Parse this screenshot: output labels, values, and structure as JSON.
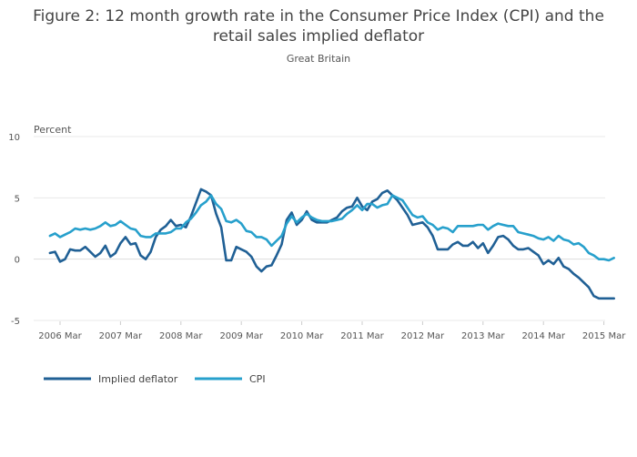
{
  "chart_data": {
    "type": "line",
    "title_line1": "Figure 2: 12 month growth rate in the Consumer Price Index (CPI) and the",
    "title_line2": "retail sales implied deflator",
    "subtitle": "Great Britain",
    "ylabel": "Percent",
    "xlabel": "",
    "ylim": [
      -5,
      10
    ],
    "yticks": [
      -5,
      0,
      5,
      10
    ],
    "xticks": [
      "2006 Mar",
      "2007 Mar",
      "2008 Mar",
      "2009 Mar",
      "2010 Mar",
      "2011 Mar",
      "2012 Mar",
      "2013 Mar",
      "2014 Mar",
      "2015 Mar"
    ],
    "grid": true,
    "legend_position": "bottom-left",
    "x": [
      "2006 Jan",
      "2006 Feb",
      "2006 Mar",
      "2006 Apr",
      "2006 May",
      "2006 Jun",
      "2006 Jul",
      "2006 Aug",
      "2006 Sep",
      "2006 Oct",
      "2006 Nov",
      "2006 Dec",
      "2007 Jan",
      "2007 Feb",
      "2007 Mar",
      "2007 Apr",
      "2007 May",
      "2007 Jun",
      "2007 Jul",
      "2007 Aug",
      "2007 Sep",
      "2007 Oct",
      "2007 Nov",
      "2007 Dec",
      "2008 Jan",
      "2008 Feb",
      "2008 Mar",
      "2008 Apr",
      "2008 May",
      "2008 Jun",
      "2008 Jul",
      "2008 Aug",
      "2008 Sep",
      "2008 Oct",
      "2008 Nov",
      "2008 Dec",
      "2009 Jan",
      "2009 Feb",
      "2009 Mar",
      "2009 Apr",
      "2009 May",
      "2009 Jun",
      "2009 Jul",
      "2009 Aug",
      "2009 Sep",
      "2009 Oct",
      "2009 Nov",
      "2009 Dec",
      "2010 Jan",
      "2010 Feb",
      "2010 Mar",
      "2010 Apr",
      "2010 May",
      "2010 Jun",
      "2010 Jul",
      "2010 Aug",
      "2010 Sep",
      "2010 Oct",
      "2010 Nov",
      "2010 Dec",
      "2011 Jan",
      "2011 Feb",
      "2011 Mar",
      "2011 Apr",
      "2011 May",
      "2011 Jun",
      "2011 Jul",
      "2011 Aug",
      "2011 Sep",
      "2011 Oct",
      "2011 Nov",
      "2011 Dec",
      "2012 Jan",
      "2012 Feb",
      "2012 Mar",
      "2012 Apr",
      "2012 May",
      "2012 Jun",
      "2012 Jul",
      "2012 Aug",
      "2012 Sep",
      "2012 Oct",
      "2012 Nov",
      "2012 Dec",
      "2013 Jan",
      "2013 Feb",
      "2013 Mar",
      "2013 Apr",
      "2013 May",
      "2013 Jun",
      "2013 Jul",
      "2013 Aug",
      "2013 Sep",
      "2013 Oct",
      "2013 Nov",
      "2013 Dec",
      "2014 Jan",
      "2014 Feb",
      "2014 Mar",
      "2014 Apr",
      "2014 May",
      "2014 Jun",
      "2014 Jul",
      "2014 Aug",
      "2014 Sep",
      "2014 Oct",
      "2014 Nov",
      "2014 Dec",
      "2015 Jan",
      "2015 Feb",
      "2015 Mar",
      "2015 Apr",
      "2015 May"
    ],
    "series": [
      {
        "name": "Implied deflator",
        "color": "#206095",
        "values": [
          0.5,
          0.6,
          -0.2,
          0.0,
          0.8,
          0.7,
          0.7,
          1.0,
          0.6,
          0.2,
          0.5,
          1.1,
          0.2,
          0.5,
          1.3,
          1.8,
          1.2,
          1.3,
          0.3,
          0.0,
          0.6,
          1.8,
          2.4,
          2.7,
          3.2,
          2.7,
          2.8,
          2.6,
          3.5,
          4.6,
          5.7,
          5.5,
          5.2,
          3.7,
          2.6,
          -0.1,
          -0.1,
          1.0,
          0.8,
          0.6,
          0.2,
          -0.6,
          -1.0,
          -0.6,
          -0.5,
          0.3,
          1.2,
          3.2,
          3.8,
          2.8,
          3.2,
          3.9,
          3.2,
          3.0,
          3.0,
          3.0,
          3.2,
          3.4,
          3.9,
          4.2,
          4.3,
          5.0,
          4.3,
          4.0,
          4.7,
          4.9,
          5.4,
          5.6,
          5.2,
          4.8,
          4.2,
          3.6,
          2.8,
          2.9,
          3.0,
          2.6,
          1.9,
          0.8,
          0.8,
          0.8,
          1.2,
          1.4,
          1.1,
          1.1,
          1.4,
          0.9,
          1.3,
          0.5,
          1.1,
          1.8,
          1.9,
          1.6,
          1.1,
          0.8,
          0.8,
          0.9,
          0.6,
          0.3,
          -0.4,
          -0.1,
          -0.4,
          0.1,
          -0.6,
          -0.8,
          -1.2,
          -1.5,
          -1.9,
          -2.3,
          -3.0,
          -3.2,
          -3.2,
          -3.2,
          -3.2
        ]
      },
      {
        "name": "CPI",
        "color": "#27a0cc",
        "values": [
          1.9,
          2.1,
          1.8,
          2.0,
          2.2,
          2.5,
          2.4,
          2.5,
          2.4,
          2.5,
          2.7,
          3.0,
          2.7,
          2.8,
          3.1,
          2.8,
          2.5,
          2.4,
          1.9,
          1.8,
          1.8,
          2.1,
          2.1,
          2.1,
          2.2,
          2.5,
          2.5,
          3.0,
          3.3,
          3.8,
          4.4,
          4.7,
          5.2,
          4.5,
          4.1,
          3.1,
          3.0,
          3.2,
          2.9,
          2.3,
          2.2,
          1.8,
          1.8,
          1.6,
          1.1,
          1.5,
          1.9,
          2.9,
          3.5,
          3.0,
          3.4,
          3.7,
          3.4,
          3.2,
          3.1,
          3.1,
          3.1,
          3.2,
          3.3,
          3.7,
          4.0,
          4.4,
          4.0,
          4.5,
          4.5,
          4.2,
          4.4,
          4.5,
          5.2,
          5.0,
          4.8,
          4.2,
          3.6,
          3.4,
          3.5,
          3.0,
          2.8,
          2.4,
          2.6,
          2.5,
          2.2,
          2.7,
          2.7,
          2.7,
          2.7,
          2.8,
          2.8,
          2.4,
          2.7,
          2.9,
          2.8,
          2.7,
          2.7,
          2.2,
          2.1,
          2.0,
          1.9,
          1.7,
          1.6,
          1.8,
          1.5,
          1.9,
          1.6,
          1.5,
          1.2,
          1.3,
          1.0,
          0.5,
          0.3,
          0.0,
          0.0,
          -0.1,
          0.1
        ]
      }
    ]
  }
}
